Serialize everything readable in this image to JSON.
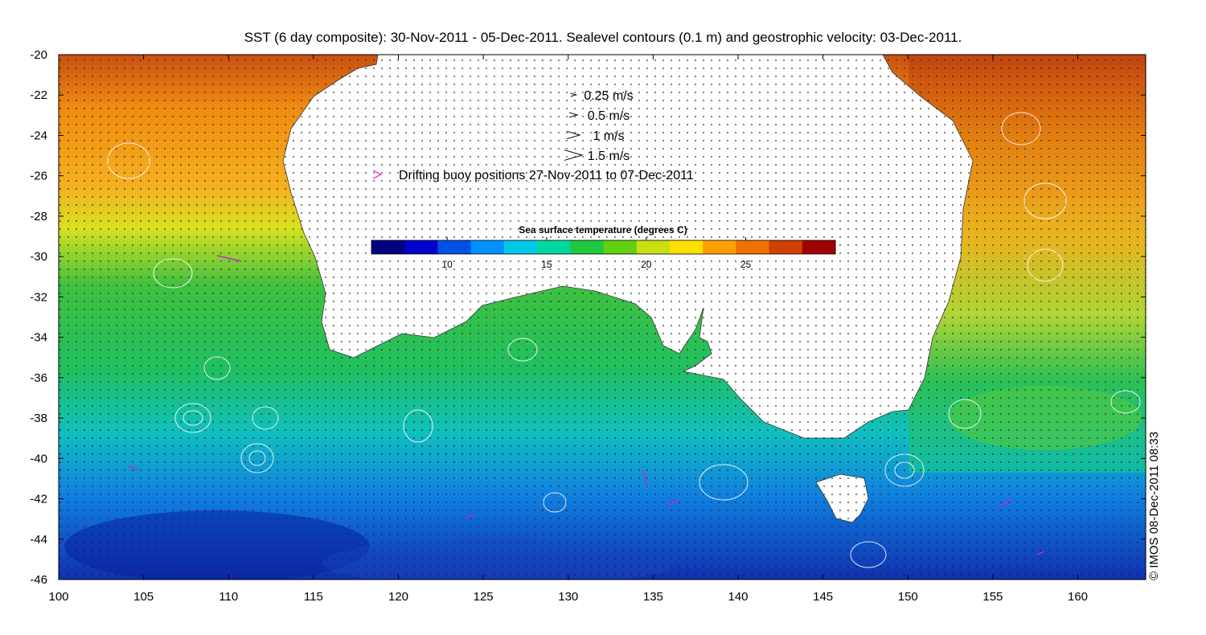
{
  "title": "SST (6 day composite): 30-Nov-2011 - 05-Dec-2011. Sealevel contours (0.1 m) and geostrophic velocity: 03-Dec-2011.",
  "legend": {
    "velocity_scales": [
      {
        "label": "0.25 m/s",
        "speed": 0.25
      },
      {
        "label": "0.5 m/s",
        "speed": 0.5
      },
      {
        "label": "1 m/s",
        "speed": 1
      },
      {
        "label": "1.5 m/s",
        "speed": 1.5
      }
    ],
    "buoy_label": "Drifting buoy positions 27-Nov-2011 to 07-Dec-2011",
    "buoy_color": "#d020d0"
  },
  "colorbar": {
    "title": "Sea surface temperature (degrees C)",
    "range": [
      6.2,
      29.5
    ],
    "ticks": [
      "10",
      "15",
      "20",
      "25"
    ],
    "tick_values": [
      10,
      15,
      20,
      25
    ],
    "colors": [
      "#000080",
      "#0000cc",
      "#0050e6",
      "#0090ff",
      "#00c8e6",
      "#00d8a0",
      "#20c840",
      "#60d010",
      "#c8e010",
      "#ffe000",
      "#ffa000",
      "#f07000",
      "#d04000",
      "#a00000"
    ]
  },
  "axes": {
    "x_ticks": [
      "100",
      "105",
      "110",
      "115",
      "120",
      "125",
      "130",
      "135",
      "140",
      "145",
      "150",
      "155",
      "160"
    ],
    "x_values": [
      100,
      105,
      110,
      115,
      120,
      125,
      130,
      135,
      140,
      145,
      150,
      155,
      160
    ],
    "y_ticks": [
      "-20",
      "-22",
      "-24",
      "-26",
      "-28",
      "-30",
      "-32",
      "-34",
      "-36",
      "-38",
      "-40",
      "-42",
      "-44",
      "-46"
    ],
    "y_values": [
      -20,
      -22,
      -24,
      -26,
      -28,
      -30,
      -32,
      -34,
      -36,
      -38,
      -40,
      -42,
      -44,
      -46
    ],
    "xlim": [
      100,
      164
    ],
    "ylim": [
      -46,
      -20
    ]
  },
  "credit": "© IMOS 08-Dec-2011 08:33"
}
